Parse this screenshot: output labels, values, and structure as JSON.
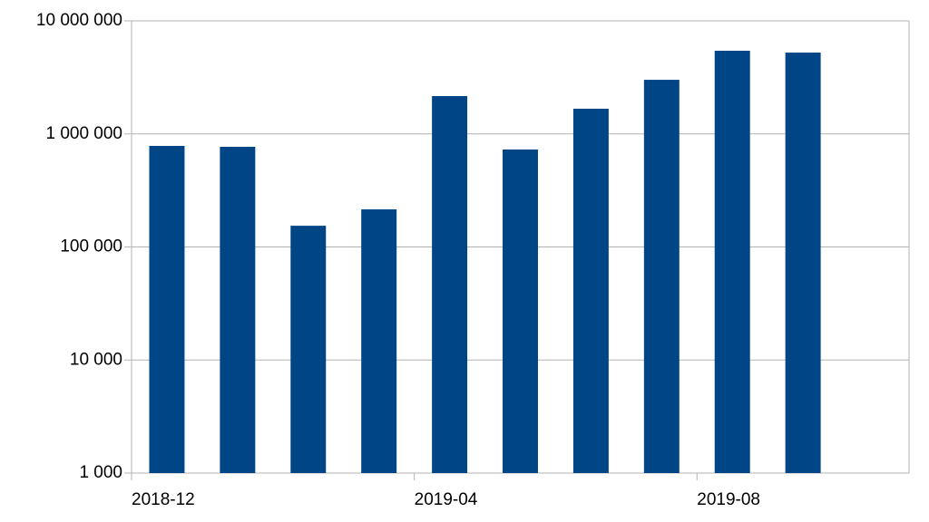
{
  "chart_data": {
    "type": "bar",
    "categories": [
      "2018-12",
      null,
      null,
      null,
      "2019-04",
      null,
      null,
      null,
      "2019-08",
      null,
      null
    ],
    "values": [
      783000,
      769000,
      154000,
      215000,
      2160000,
      728000,
      1670000,
      3010000,
      5440000,
      5240000,
      null
    ],
    "color": "#004586",
    "log_scale": true,
    "ylim": [
      1000,
      10000000
    ],
    "yticks": [
      {
        "value": 1000,
        "label": "1 000"
      },
      {
        "value": 10000,
        "label": "10 000"
      },
      {
        "value": 100000,
        "label": "100 000"
      },
      {
        "value": 1000000,
        "label": "1 000 000"
      },
      {
        "value": 10000000,
        "label": "10 000 000"
      }
    ],
    "grid": true
  }
}
